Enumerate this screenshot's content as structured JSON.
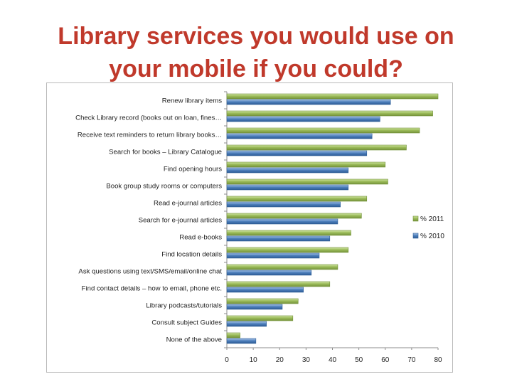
{
  "slide": {
    "title_line1": "Library services you would use on",
    "title_line2": "your mobile if you could?"
  },
  "chart_data": {
    "type": "bar",
    "orientation": "horizontal",
    "categories": [
      "Renew library items",
      "Check Library record (books out on loan, fines…",
      "Receive text reminders to return library books…",
      "Search for books – Library Catalogue",
      "Find opening hours",
      "Book group study rooms or computers",
      "Read e-journal articles",
      "Search for e-journal articles",
      "Read e-books",
      "Find location details",
      "Ask questions using text/SMS/email/online chat",
      "Find contact details – how to email, phone etc.",
      "Library podcasts/tutorials",
      "Consult subject Guides",
      "None of the above"
    ],
    "series": [
      {
        "name": "% 2011",
        "color": "#9bbb59",
        "values": [
          80,
          78,
          73,
          68,
          60,
          61,
          53,
          51,
          47,
          46,
          42,
          39,
          27,
          25,
          5
        ]
      },
      {
        "name": "% 2010",
        "color": "#4f81bd",
        "values": [
          62,
          58,
          55,
          53,
          46,
          46,
          43,
          42,
          39,
          35,
          32,
          29,
          21,
          15,
          11
        ]
      }
    ],
    "xlim": [
      0,
      80
    ],
    "xticks": [
      0,
      10,
      20,
      30,
      40,
      50,
      60,
      70,
      80
    ],
    "grid": false,
    "legend_position": "right"
  }
}
